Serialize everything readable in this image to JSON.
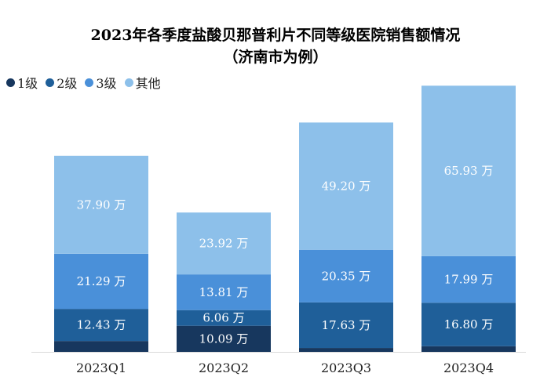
{
  "chart_data": {
    "type": "bar",
    "stacked": true,
    "title": "2023年各季度盐酸贝那普利片不同等级医院销售额情况",
    "subtitle": "（济南市为例）",
    "legend_position": "top-left",
    "grid": false,
    "categories": [
      "2023Q1",
      "2023Q2",
      "2023Q3",
      "2023Q4"
    ],
    "unit": "万",
    "series": [
      {
        "name": "1级",
        "color": "#17375e",
        "values": [
          4.2,
          10.09,
          1.5,
          2.2
        ],
        "labels": [
          "",
          "10.09 万",
          "",
          ""
        ]
      },
      {
        "name": "2级",
        "color": "#1f5f99",
        "values": [
          12.43,
          6.06,
          17.63,
          16.8
        ],
        "labels": [
          "12.43 万",
          "6.06 万",
          "17.63 万",
          "16.80 万"
        ]
      },
      {
        "name": "3级",
        "color": "#4a90d9",
        "values": [
          21.29,
          13.81,
          20.35,
          17.99
        ],
        "labels": [
          "21.29 万",
          "13.81 万",
          "20.35 万",
          "17.99 万"
        ]
      },
      {
        "name": "其他",
        "color": "#8dc0ea",
        "values": [
          37.9,
          23.92,
          49.2,
          65.93
        ],
        "labels": [
          "37.90 万",
          "23.92 万",
          "49.20 万",
          "65.93 万"
        ]
      }
    ]
  }
}
